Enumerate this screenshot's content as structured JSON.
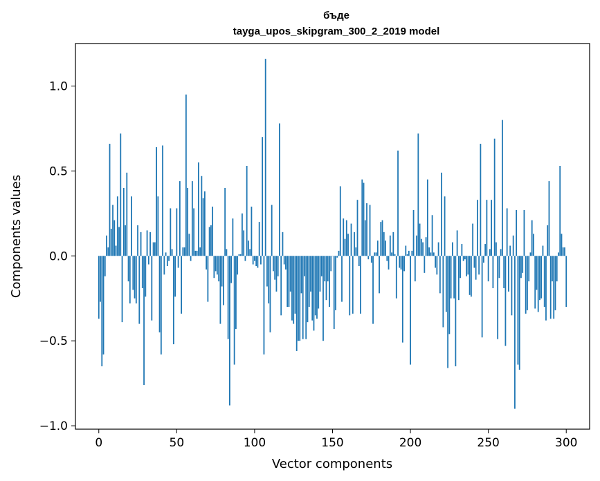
{
  "chart_data": {
    "type": "bar",
    "title": "бъде",
    "subtitle": "tayga_upos_skipgram_300_2_2019 model",
    "xlabel": "Vector components",
    "ylabel": "Components values",
    "xlim": [
      -15,
      315
    ],
    "ylim": [
      -1.02,
      1.25
    ],
    "xticks": [
      0,
      50,
      100,
      150,
      200,
      250,
      300
    ],
    "yticks": [
      -1.0,
      -0.5,
      0.0,
      0.5,
      1.0
    ],
    "ytick_labels": [
      "−1.0",
      "−0.5",
      "0.0",
      "0.5",
      "1.0"
    ],
    "bar_color": "#1f77b4",
    "values": [
      -0.37,
      -0.27,
      -0.65,
      -0.58,
      -0.12,
      0.12,
      0.05,
      0.66,
      0.16,
      0.3,
      0.21,
      0.06,
      0.35,
      0.17,
      0.72,
      -0.39,
      0.4,
      0.18,
      0.49,
      -0.15,
      -0.28,
      0.35,
      -0.2,
      -0.25,
      -0.28,
      0.18,
      -0.4,
      0.14,
      -0.19,
      -0.76,
      -0.24,
      0.15,
      -0.05,
      0.14,
      -0.38,
      0.08,
      0.08,
      0.64,
      0.35,
      -0.45,
      -0.58,
      0.65,
      -0.11,
      0.02,
      -0.06,
      -0.03,
      0.28,
      0.04,
      -0.52,
      -0.24,
      0.28,
      -0.07,
      0.44,
      -0.34,
      0.05,
      0.05,
      0.95,
      0.4,
      0.13,
      -0.03,
      0.44,
      0.28,
      0.03,
      0.03,
      0.55,
      0.05,
      0.47,
      0.34,
      0.38,
      -0.08,
      -0.27,
      0.17,
      0.18,
      0.29,
      -0.13,
      -0.09,
      -0.11,
      -0.15,
      -0.4,
      -0.18,
      -0.29,
      0.4,
      0.04,
      -0.49,
      -0.88,
      -0.16,
      0.22,
      -0.64,
      -0.43,
      -0.11,
      0.01,
      0.01,
      0.25,
      0.15,
      -0.03,
      0.53,
      0.09,
      0.04,
      0.29,
      -0.05,
      -0.03,
      -0.06,
      -0.07,
      0.2,
      -0.05,
      0.7,
      -0.58,
      1.16,
      -0.18,
      -0.28,
      -0.45,
      0.3,
      -0.09,
      -0.14,
      -0.21,
      -0.12,
      0.78,
      -0.35,
      0.14,
      -0.05,
      -0.08,
      -0.3,
      -0.3,
      -0.21,
      -0.38,
      -0.4,
      -0.34,
      -0.56,
      -0.5,
      -0.5,
      -0.22,
      -0.49,
      -0.12,
      -0.49,
      -0.39,
      -0.3,
      -0.21,
      -0.38,
      -0.44,
      -0.35,
      -0.37,
      -0.31,
      -0.21,
      -0.12,
      -0.5,
      -0.15,
      -0.26,
      -0.15,
      -0.3,
      -0.09,
      0.0,
      -0.43,
      -0.32,
      -0.01,
      0.03,
      0.41,
      -0.27,
      0.22,
      0.1,
      0.21,
      0.13,
      -0.35,
      0.19,
      -0.34,
      0.14,
      0.05,
      0.33,
      -0.06,
      -0.34,
      0.45,
      0.43,
      0.21,
      0.31,
      -0.02,
      0.3,
      -0.04,
      -0.4,
      0.02,
      0.02,
      0.09,
      -0.22,
      0.2,
      0.21,
      0.14,
      0.09,
      -0.03,
      -0.08,
      0.12,
      0.02,
      0.14,
      0.01,
      -0.25,
      0.62,
      -0.07,
      -0.08,
      -0.51,
      -0.09,
      0.06,
      0.01,
      0.03,
      -0.64,
      0.03,
      0.27,
      -0.15,
      0.12,
      0.72,
      0.19,
      0.1,
      0.08,
      -0.1,
      0.11,
      0.45,
      0.05,
      0.02,
      0.24,
      0.02,
      -0.07,
      -0.11,
      0.08,
      -0.22,
      0.49,
      -0.42,
      0.35,
      -0.33,
      -0.66,
      -0.46,
      -0.25,
      0.08,
      -0.25,
      -0.65,
      0.15,
      -0.26,
      -0.13,
      0.07,
      -0.03,
      -0.02,
      -0.12,
      -0.11,
      -0.23,
      -0.24,
      0.19,
      -0.07,
      -0.14,
      0.33,
      -0.11,
      0.66,
      -0.48,
      -0.04,
      0.07,
      0.33,
      -0.15,
      0.04,
      0.33,
      -0.19,
      0.69,
      0.08,
      -0.49,
      -0.13,
      0.04,
      0.8,
      -0.19,
      -0.53,
      0.28,
      -0.21,
      0.06,
      -0.35,
      0.12,
      -0.9,
      0.27,
      -0.64,
      -0.67,
      -0.13,
      -0.1,
      0.27,
      -0.34,
      -0.32,
      -0.15,
      0.02,
      0.21,
      0.13,
      -0.31,
      -0.2,
      -0.33,
      -0.26,
      -0.25,
      0.06,
      -0.3,
      -0.38,
      0.18,
      0.44,
      -0.37,
      -0.15,
      -0.37,
      -0.32,
      -0.15,
      0.02,
      0.53,
      0.13,
      0.05,
      0.05,
      -0.3
    ]
  }
}
